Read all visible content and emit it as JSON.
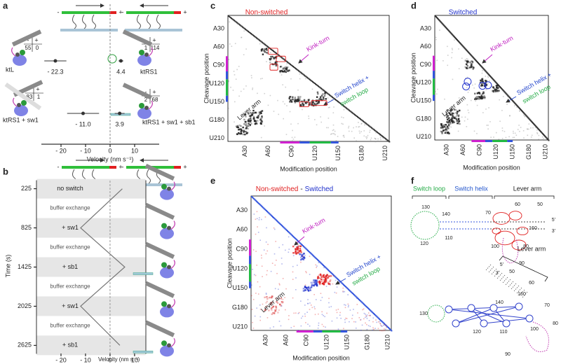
{
  "panel_a": {
    "label": "a",
    "minus": "-",
    "plus": "+",
    "counts": [
      [
        "55",
        "0"
      ],
      [
        "1",
        "114"
      ],
      [
        "83",
        "1"
      ],
      [
        "2",
        "68"
      ]
    ],
    "constructs": [
      "ktL",
      "ktRS1",
      "ktRS1 + sw1",
      "ktRS1 + sw1 + sb1"
    ],
    "velocities": [
      {
        "value": -22.3,
        "label": "- 22.3"
      },
      {
        "value": 4.4,
        "label": "4.4"
      },
      {
        "value": -11.0,
        "label": "- 11.0"
      },
      {
        "value": 3.9,
        "label": "3.9"
      }
    ],
    "errors": [
      4.5,
      1,
      6.5,
      2
    ],
    "xlim": [
      -28,
      20
    ],
    "xticks": [
      {
        "value": -20,
        "label": "- 20"
      },
      {
        "value": -10,
        "label": "- 10"
      },
      0,
      10
    ],
    "x_label": "Velocity (nm s⁻¹)"
  },
  "panel_b": {
    "label": "b",
    "minus": "-",
    "plus": "+",
    "times": [
      225,
      825,
      1425,
      2025,
      2625
    ],
    "conditions": [
      "no switch",
      "+ sw1",
      "+ sb1",
      "+ sw1",
      "+ sb1"
    ],
    "exchanges": [
      "buffer exchange",
      "buffer exchange",
      "buffer exchange",
      "buffer exchange"
    ],
    "velocities": [
      5,
      -12,
      6,
      -12,
      4
    ],
    "ylim": [
      100,
      2750
    ],
    "xlim": [
      -30,
      14.6
    ],
    "xticks": [
      {
        "value": -20,
        "label": "- 20"
      },
      {
        "value": -10,
        "label": "- 10"
      },
      0,
      10
    ],
    "y_label": "Time (s)",
    "x_label": "Velocity (nm s⁻¹)"
  },
  "panel_c": {
    "label": "c",
    "title": "Non-switched",
    "y_label": "Cleavage position",
    "x_label": "Modification position",
    "ticks": [
      "A30",
      "A60",
      "C90",
      "U120",
      "U150",
      "G180",
      "U210"
    ],
    "kink_turn": "Kink-turn",
    "switch_helix": "Switch helix +",
    "switch_loop": "switch loop",
    "lever_arm": "Lever arm"
  },
  "panel_d": {
    "label": "d",
    "title": "Switched",
    "y_label": "Cleavage position",
    "x_label": "Modification position",
    "ticks": [
      "A30",
      "A60",
      "C90",
      "U120",
      "U150",
      "G180",
      "U210"
    ],
    "kink_turn": "Kink-turn",
    "switch_helix": "Switch helix +",
    "switch_loop": "switch loop",
    "lever_arm": "Lever arm"
  },
  "panel_e": {
    "label": "e",
    "title": [
      "Non-switched",
      "-",
      "Switched"
    ],
    "y_label": "Cleavage position",
    "x_label": "Modification position",
    "ticks": [
      "A30",
      "A60",
      "C90",
      "U120",
      "U150",
      "G180",
      "U210"
    ],
    "kink_turn": "Kink-turn",
    "switch_helix": "Switch helix +",
    "switch_loop": "switch loop",
    "lever_arm": "Lever arm"
  },
  "panel_f": {
    "label": "f",
    "top": {
      "switch_loop": "Switch loop",
      "switch_helix": "Switch helix",
      "lever_arm": "Lever arm",
      "numbers": [
        "130",
        "120",
        "140",
        "110",
        "70",
        "60",
        "50",
        "100",
        "80",
        "160",
        "90"
      ],
      "ends": [
        "5'",
        "3'"
      ]
    },
    "bottom": {
      "lever_arm": "Lever arm",
      "numbers": [
        "50",
        "60",
        "160",
        "140",
        "70",
        "130",
        "120",
        "110",
        "100",
        "80",
        "90"
      ],
      "ends": [
        "5'",
        "3'"
      ]
    }
  }
}
